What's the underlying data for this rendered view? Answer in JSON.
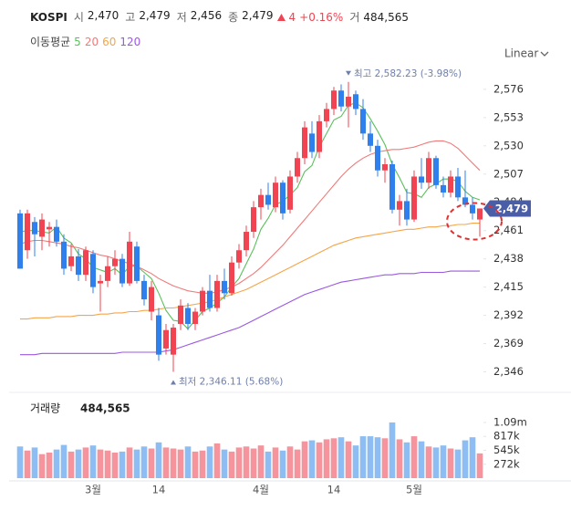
{
  "chart_data": {
    "type": "candlestick",
    "title": "KOSPI",
    "header_stats": [
      {
        "label": "시",
        "value": "2,470"
      },
      {
        "label": "고",
        "value": "2,479"
      },
      {
        "label": "저",
        "value": "2,456"
      },
      {
        "label": "종",
        "value": "2,479"
      }
    ],
    "change": "4",
    "change_pct": "+0.16%",
    "volume_short_label": "거",
    "volume_total": "484,565",
    "ma_label": "이동평균",
    "scale_label": "Linear",
    "log_scale": false,
    "categories": [
      null,
      null,
      null,
      null,
      null,
      null,
      null,
      null,
      null,
      null,
      "3월",
      null,
      null,
      null,
      null,
      null,
      null,
      null,
      null,
      "14",
      null,
      null,
      null,
      null,
      null,
      null,
      null,
      null,
      null,
      null,
      null,
      null,
      null,
      "4월",
      null,
      null,
      null,
      null,
      null,
      null,
      null,
      null,
      null,
      "14",
      null,
      null,
      null,
      null,
      null,
      null,
      null,
      null,
      null,
      null,
      "5월",
      null,
      null,
      null,
      null,
      null,
      null,
      null,
      null,
      null
    ],
    "open": [
      2475,
      2445,
      2468,
      2456,
      2462,
      2464,
      2452,
      2432,
      2440,
      2425,
      2442,
      2418,
      2420,
      2432,
      2438,
      2418,
      2448,
      2420,
      2395,
      2392,
      2365,
      2360,
      2385,
      2398,
      2385,
      2395,
      2412,
      2398,
      2420,
      2410,
      2435,
      2445,
      2460,
      2480,
      2490,
      2480,
      2500,
      2478,
      2505,
      2520,
      2540,
      2525,
      2550,
      2560,
      2575,
      2562,
      2572,
      2560,
      2540,
      2530,
      2510,
      2515,
      2478,
      2485,
      2470,
      2505,
      2500,
      2520,
      2498,
      2492,
      2505,
      2488,
      2482,
      2470
    ],
    "high": [
      2478,
      2478,
      2472,
      2475,
      2468,
      2470,
      2458,
      2450,
      2446,
      2448,
      2445,
      2425,
      2440,
      2445,
      2442,
      2460,
      2452,
      2425,
      2420,
      2398,
      2385,
      2385,
      2405,
      2402,
      2398,
      2415,
      2425,
      2425,
      2430,
      2440,
      2450,
      2465,
      2485,
      2495,
      2500,
      2505,
      2502,
      2510,
      2525,
      2550,
      2550,
      2555,
      2565,
      2578,
      2580,
      2582,
      2575,
      2568,
      2550,
      2535,
      2520,
      2518,
      2490,
      2495,
      2510,
      2520,
      2525,
      2522,
      2505,
      2510,
      2512,
      2510,
      2488,
      2479
    ],
    "low": [
      2430,
      2438,
      2440,
      2445,
      2448,
      2448,
      2425,
      2428,
      2420,
      2420,
      2410,
      2395,
      2415,
      2425,
      2415,
      2416,
      2418,
      2400,
      2388,
      2355,
      2360,
      2346,
      2380,
      2380,
      2380,
      2392,
      2395,
      2395,
      2405,
      2408,
      2430,
      2440,
      2455,
      2470,
      2478,
      2476,
      2470,
      2475,
      2500,
      2515,
      2520,
      2520,
      2545,
      2555,
      2558,
      2545,
      2555,
      2535,
      2525,
      2505,
      2500,
      2475,
      2465,
      2465,
      2468,
      2495,
      2495,
      2495,
      2488,
      2488,
      2485,
      2480,
      2470,
      2456
    ],
    "close": [
      2430,
      2475,
      2458,
      2470,
      2464,
      2452,
      2430,
      2440,
      2425,
      2445,
      2415,
      2420,
      2432,
      2438,
      2418,
      2452,
      2420,
      2405,
      2415,
      2360,
      2380,
      2382,
      2400,
      2385,
      2395,
      2412,
      2398,
      2420,
      2410,
      2435,
      2445,
      2460,
      2480,
      2490,
      2482,
      2500,
      2475,
      2505,
      2520,
      2545,
      2525,
      2550,
      2560,
      2575,
      2562,
      2570,
      2560,
      2540,
      2530,
      2510,
      2515,
      2478,
      2485,
      2470,
      2505,
      2500,
      2520,
      2498,
      2492,
      2505,
      2488,
      2482,
      2475,
      2479
    ],
    "up_color": "#f04452",
    "down_color": "#2f80ed",
    "series": [
      {
        "name": "5",
        "color": "#5cbf5c",
        "values": [
          2460,
          2461,
          2461,
          2460,
          2459,
          2464,
          2455,
          2451,
          2442,
          2438,
          2431,
          2429,
          2427,
          2430,
          2425,
          2432,
          2432,
          2427,
          2422,
          2410,
          2396,
          2388,
          2387,
          2381,
          2388,
          2395,
          2398,
          2402,
          2407,
          2415,
          2422,
          2434,
          2446,
          2462,
          2471,
          2482,
          2485,
          2490,
          2496,
          2509,
          2514,
          2529,
          2540,
          2551,
          2554,
          2563,
          2565,
          2561,
          2552,
          2542,
          2531,
          2515,
          2504,
          2492,
          2491,
          2488,
          2496,
          2499,
          2503,
          2503,
          2501,
          2493,
          2488,
          2486
        ]
      },
      {
        "name": "20",
        "color": "#f07a7a",
        "values": [
          2450,
          2452,
          2453,
          2453,
          2452,
          2451,
          2450,
          2448,
          2447,
          2445,
          2443,
          2441,
          2440,
          2438,
          2436,
          2434,
          2432,
          2429,
          2426,
          2422,
          2419,
          2416,
          2414,
          2412,
          2411,
          2410,
          2410,
          2411,
          2413,
          2415,
          2418,
          2422,
          2426,
          2431,
          2437,
          2443,
          2449,
          2456,
          2463,
          2470,
          2477,
          2484,
          2491,
          2498,
          2505,
          2511,
          2516,
          2520,
          2523,
          2525,
          2526,
          2527,
          2527,
          2528,
          2529,
          2531,
          2533,
          2534,
          2534,
          2532,
          2528,
          2522,
          2516,
          2510
        ]
      },
      {
        "name": "60",
        "color": "#f5a54a",
        "values": [
          2389,
          2389,
          2390,
          2390,
          2390,
          2391,
          2391,
          2391,
          2392,
          2392,
          2392,
          2393,
          2393,
          2394,
          2394,
          2395,
          2395,
          2396,
          2396,
          2397,
          2398,
          2398,
          2399,
          2400,
          2401,
          2402,
          2403,
          2405,
          2407,
          2409,
          2411,
          2413,
          2416,
          2419,
          2422,
          2425,
          2428,
          2431,
          2434,
          2437,
          2440,
          2443,
          2446,
          2449,
          2451,
          2453,
          2455,
          2456,
          2457,
          2458,
          2459,
          2460,
          2461,
          2462,
          2462,
          2463,
          2464,
          2464,
          2465,
          2465,
          2466,
          2466,
          2467,
          2467
        ]
      },
      {
        "name": "120",
        "color": "#9b59e0",
        "values": [
          2360,
          2360,
          2360,
          2361,
          2361,
          2361,
          2361,
          2361,
          2361,
          2361,
          2361,
          2361,
          2361,
          2361,
          2362,
          2362,
          2362,
          2362,
          2362,
          2362,
          2363,
          2364,
          2366,
          2368,
          2370,
          2372,
          2374,
          2376,
          2378,
          2380,
          2382,
          2385,
          2388,
          2391,
          2394,
          2397,
          2400,
          2403,
          2406,
          2409,
          2411,
          2413,
          2415,
          2417,
          2419,
          2420,
          2421,
          2422,
          2423,
          2424,
          2425,
          2425,
          2426,
          2426,
          2426,
          2427,
          2427,
          2427,
          2427,
          2428,
          2428,
          2428,
          2428,
          2428
        ]
      }
    ],
    "ylim": [
      2333,
      2593
    ],
    "yticks": [
      {
        "value": 2346,
        "label": "2,346"
      },
      {
        "value": 2369,
        "label": "2,369"
      },
      {
        "value": 2392,
        "label": "2,392"
      },
      {
        "value": 2415,
        "label": "2,415"
      },
      {
        "value": 2438,
        "label": "2,438"
      },
      {
        "value": 2461,
        "label": "2,461"
      },
      {
        "value": 2484,
        "label": "2,484"
      },
      {
        "value": 2507,
        "label": "2,507"
      },
      {
        "value": 2530,
        "label": "2,530"
      },
      {
        "value": 2553,
        "label": "2,553"
      },
      {
        "value": 2576,
        "label": "2,576"
      }
    ],
    "last_value_label": "2,479",
    "annotations": [
      {
        "text": "최고 2,582.23 (-3.98%)"
      },
      {
        "text": "최저 2,346.11 (5.68%)"
      }
    ],
    "volume": {
      "label": "거래량",
      "value_label": "484,565",
      "values": [
        620000,
        540000,
        600000,
        470000,
        500000,
        560000,
        650000,
        520000,
        560000,
        600000,
        640000,
        560000,
        540000,
        500000,
        520000,
        600000,
        560000,
        620000,
        580000,
        700000,
        600000,
        580000,
        560000,
        620000,
        520000,
        540000,
        620000,
        680000,
        560000,
        520000,
        600000,
        620000,
        580000,
        640000,
        520000,
        600000,
        540000,
        620000,
        560000,
        720000,
        740000,
        700000,
        760000,
        780000,
        800000,
        720000,
        640000,
        820000,
        820000,
        800000,
        780000,
        1090000,
        760000,
        700000,
        820000,
        720000,
        620000,
        600000,
        640000,
        580000,
        560000,
        740000,
        800000,
        484565
      ],
      "up_color": "#f5949c",
      "down_color": "#8dbdf2",
      "ylim": [
        0,
        1500000
      ],
      "yticks": [
        {
          "value": 272000,
          "label": "272k"
        },
        {
          "value": 545000,
          "label": "545k"
        },
        {
          "value": 817000,
          "label": "817k"
        },
        {
          "value": 1090000,
          "label": "1.09m"
        }
      ]
    }
  }
}
